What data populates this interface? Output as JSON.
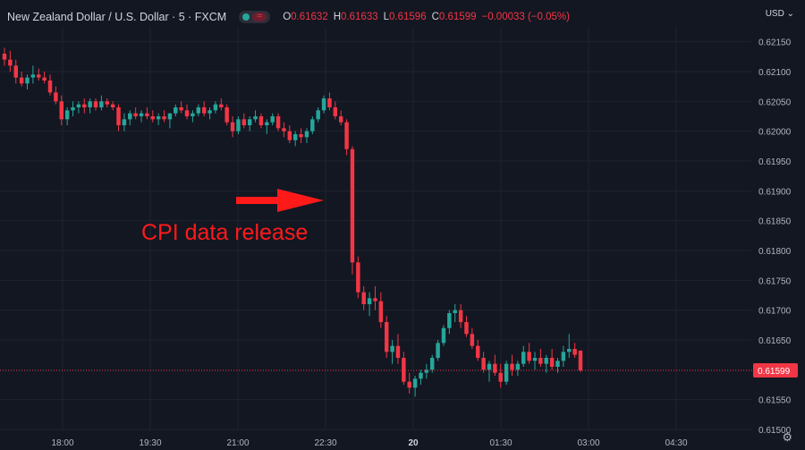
{
  "header": {
    "symbol": "New Zealand Dollar / U.S. Dollar · 5 · FXCM",
    "pill_icon_right": "=",
    "ohlc": [
      {
        "k": "O",
        "v": "0.61632"
      },
      {
        "k": "H",
        "v": "0.61633"
      },
      {
        "k": "L",
        "v": "0.61596"
      },
      {
        "k": "C",
        "v": "0.61599"
      },
      {
        "k": "",
        "v": "−0.00033 (−0.05%)"
      }
    ],
    "currency": "USD"
  },
  "icons": {
    "settings": "gear-icon",
    "currency_dropdown": "chevron-down-icon"
  },
  "colors": {
    "background": "#131722",
    "up": "#26a69a",
    "down": "#f23645",
    "annotation": "#ff1a1a",
    "grid": "#1f2330",
    "text": "#b2b5be"
  },
  "chart_data": {
    "type": "candlestick",
    "y_ticks": [
      "0.62150",
      "0.62100",
      "0.62050",
      "0.62000",
      "0.61950",
      "0.61900",
      "0.61850",
      "0.61800",
      "0.61750",
      "0.61700",
      "0.61650",
      "0.61599",
      "0.61550",
      "0.61500"
    ],
    "x_ticks": [
      "18:00",
      "19:30",
      "21:00",
      "22:30",
      "20",
      "01:30",
      "03:00",
      "04:30"
    ],
    "ylim": [
      0.615,
      0.62175
    ],
    "last_price": 0.61599,
    "last_price_label": "0.61599",
    "annotation": "CPI data release",
    "candles": [
      [
        0.6213,
        0.6214,
        0.6211,
        0.6212
      ],
      [
        0.6212,
        0.62135,
        0.621,
        0.6211
      ],
      [
        0.6211,
        0.6212,
        0.6208,
        0.6209
      ],
      [
        0.6209,
        0.621,
        0.62075,
        0.6208
      ],
      [
        0.6208,
        0.62095,
        0.6207,
        0.6209
      ],
      [
        0.6209,
        0.6211,
        0.6208,
        0.62095
      ],
      [
        0.62095,
        0.62105,
        0.62085,
        0.6209
      ],
      [
        0.6209,
        0.621,
        0.6208,
        0.62085
      ],
      [
        0.62085,
        0.62095,
        0.6206,
        0.62065
      ],
      [
        0.62065,
        0.62075,
        0.62045,
        0.6205
      ],
      [
        0.6205,
        0.6206,
        0.6201,
        0.6202
      ],
      [
        0.6202,
        0.6204,
        0.6201,
        0.62035
      ],
      [
        0.62035,
        0.6205,
        0.62025,
        0.6204
      ],
      [
        0.6204,
        0.6205,
        0.6203,
        0.62045
      ],
      [
        0.62045,
        0.62055,
        0.6203,
        0.6204
      ],
      [
        0.6204,
        0.62055,
        0.6203,
        0.6205
      ],
      [
        0.6205,
        0.62055,
        0.62035,
        0.6204
      ],
      [
        0.6204,
        0.6206,
        0.62035,
        0.6205
      ],
      [
        0.6205,
        0.62055,
        0.6204,
        0.62045
      ],
      [
        0.62045,
        0.6205,
        0.62035,
        0.6204
      ],
      [
        0.6204,
        0.62045,
        0.62,
        0.6201
      ],
      [
        0.6201,
        0.6203,
        0.62,
        0.6202
      ],
      [
        0.6202,
        0.62035,
        0.6201,
        0.6203
      ],
      [
        0.6203,
        0.6204,
        0.6202,
        0.62025
      ],
      [
        0.62025,
        0.62035,
        0.62015,
        0.6203
      ],
      [
        0.6203,
        0.6204,
        0.6202,
        0.62025
      ],
      [
        0.62025,
        0.62035,
        0.62015,
        0.6202
      ],
      [
        0.6202,
        0.6203,
        0.6201,
        0.62025
      ],
      [
        0.62025,
        0.62035,
        0.62015,
        0.6202
      ],
      [
        0.6202,
        0.6203,
        0.62005,
        0.6203
      ],
      [
        0.6203,
        0.62045,
        0.62025,
        0.6204
      ],
      [
        0.6204,
        0.6205,
        0.6203,
        0.62035
      ],
      [
        0.62035,
        0.62045,
        0.6202,
        0.62025
      ],
      [
        0.62025,
        0.62035,
        0.62015,
        0.6203
      ],
      [
        0.6203,
        0.62045,
        0.62025,
        0.6204
      ],
      [
        0.6204,
        0.6205,
        0.62025,
        0.6203
      ],
      [
        0.6203,
        0.6204,
        0.6202,
        0.62035
      ],
      [
        0.62035,
        0.6205,
        0.6203,
        0.62045
      ],
      [
        0.62045,
        0.62055,
        0.62035,
        0.6204
      ],
      [
        0.6204,
        0.62045,
        0.6201,
        0.62015
      ],
      [
        0.62015,
        0.62025,
        0.6199,
        0.62
      ],
      [
        0.62,
        0.62025,
        0.61995,
        0.6202
      ],
      [
        0.6202,
        0.6203,
        0.62005,
        0.6201
      ],
      [
        0.6201,
        0.62025,
        0.62,
        0.6202
      ],
      [
        0.6202,
        0.62035,
        0.62015,
        0.62025
      ],
      [
        0.62025,
        0.6203,
        0.62005,
        0.6201
      ],
      [
        0.6201,
        0.6202,
        0.61995,
        0.62015
      ],
      [
        0.62015,
        0.6203,
        0.6201,
        0.62025
      ],
      [
        0.62025,
        0.6203,
        0.62,
        0.62005
      ],
      [
        0.62005,
        0.62015,
        0.6199,
        0.62
      ],
      [
        0.62,
        0.6201,
        0.6198,
        0.61985
      ],
      [
        0.61985,
        0.62,
        0.61975,
        0.61995
      ],
      [
        0.61995,
        0.62005,
        0.6198,
        0.6199
      ],
      [
        0.6199,
        0.62005,
        0.6198,
        0.62
      ],
      [
        0.62,
        0.62025,
        0.61995,
        0.6202
      ],
      [
        0.6202,
        0.6204,
        0.62015,
        0.62035
      ],
      [
        0.62035,
        0.6206,
        0.6203,
        0.62055
      ],
      [
        0.62055,
        0.62065,
        0.62035,
        0.6204
      ],
      [
        0.6204,
        0.6205,
        0.6202,
        0.62025
      ],
      [
        0.62025,
        0.62035,
        0.6201,
        0.62015
      ],
      [
        0.62015,
        0.6202,
        0.6196,
        0.6197
      ],
      [
        0.6197,
        0.61975,
        0.6176,
        0.6178
      ],
      [
        0.6178,
        0.6179,
        0.6172,
        0.6173
      ],
      [
        0.6173,
        0.6174,
        0.617,
        0.6171
      ],
      [
        0.6171,
        0.6173,
        0.6169,
        0.6172
      ],
      [
        0.6172,
        0.6174,
        0.617,
        0.61715
      ],
      [
        0.61715,
        0.6173,
        0.6167,
        0.6168
      ],
      [
        0.6168,
        0.6169,
        0.6162,
        0.6163
      ],
      [
        0.6163,
        0.6165,
        0.6161,
        0.6164
      ],
      [
        0.6164,
        0.6166,
        0.6161,
        0.6162
      ],
      [
        0.6162,
        0.6163,
        0.61575,
        0.6158
      ],
      [
        0.6158,
        0.61595,
        0.6156,
        0.6157
      ],
      [
        0.6157,
        0.6159,
        0.61555,
        0.61585
      ],
      [
        0.61585,
        0.616,
        0.61575,
        0.61595
      ],
      [
        0.61595,
        0.6161,
        0.61585,
        0.616
      ],
      [
        0.616,
        0.61625,
        0.61595,
        0.6162
      ],
      [
        0.6162,
        0.6165,
        0.61615,
        0.61645
      ],
      [
        0.61645,
        0.61675,
        0.6164,
        0.6167
      ],
      [
        0.6167,
        0.617,
        0.6166,
        0.61695
      ],
      [
        0.61695,
        0.6171,
        0.6168,
        0.617
      ],
      [
        0.617,
        0.6171,
        0.6167,
        0.6168
      ],
      [
        0.6168,
        0.6169,
        0.61655,
        0.6166
      ],
      [
        0.6166,
        0.6167,
        0.61635,
        0.6164
      ],
      [
        0.6164,
        0.6165,
        0.61615,
        0.6162
      ],
      [
        0.6162,
        0.6163,
        0.61595,
        0.616
      ],
      [
        0.616,
        0.61615,
        0.6158,
        0.6161
      ],
      [
        0.6161,
        0.61625,
        0.6159,
        0.61595
      ],
      [
        0.61595,
        0.6161,
        0.6157,
        0.6158
      ],
      [
        0.6158,
        0.61615,
        0.61575,
        0.6161
      ],
      [
        0.6161,
        0.61625,
        0.6159,
        0.616
      ],
      [
        0.616,
        0.61615,
        0.6159,
        0.6161
      ],
      [
        0.6161,
        0.6164,
        0.61605,
        0.6163
      ],
      [
        0.6163,
        0.61645,
        0.6161,
        0.61615
      ],
      [
        0.61615,
        0.6163,
        0.616,
        0.6162
      ],
      [
        0.6162,
        0.61635,
        0.61605,
        0.6161
      ],
      [
        0.6161,
        0.61625,
        0.61595,
        0.6162
      ],
      [
        0.6162,
        0.61635,
        0.616,
        0.61605
      ],
      [
        0.61605,
        0.6162,
        0.61595,
        0.61615
      ],
      [
        0.61615,
        0.6164,
        0.61605,
        0.6163
      ],
      [
        0.6163,
        0.6166,
        0.6162,
        0.61635
      ],
      [
        0.61635,
        0.61645,
        0.6162,
        0.61625
      ],
      [
        0.61632,
        0.61633,
        0.61596,
        0.61599
      ]
    ]
  }
}
